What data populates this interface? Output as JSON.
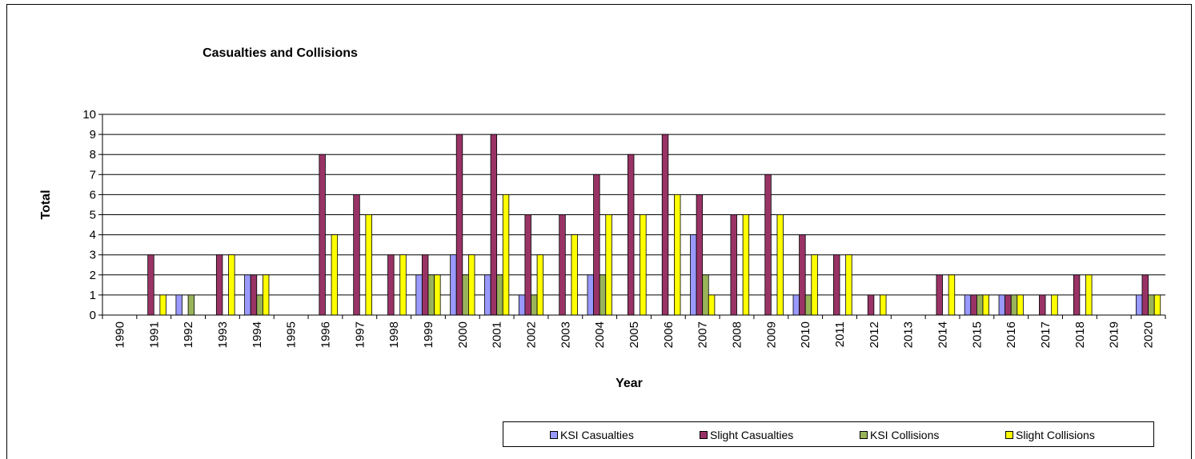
{
  "chart_data": {
    "type": "bar",
    "title": "Casualties and Collisions",
    "xlabel": "Year",
    "ylabel": "Total",
    "ylim": [
      0,
      10
    ],
    "yticks": [
      "0",
      "1",
      "2",
      "3",
      "4",
      "5",
      "6",
      "7",
      "8",
      "9",
      "10"
    ],
    "grid": true,
    "legend_position": "bottom-right",
    "categories": [
      "1990",
      "1991",
      "1992",
      "1993",
      "1994",
      "1995",
      "1996",
      "1997",
      "1998",
      "1999",
      "2000",
      "2001",
      "2002",
      "2003",
      "2004",
      "2005",
      "2006",
      "2007",
      "2008",
      "2009",
      "2010",
      "2011",
      "2012",
      "2013",
      "2014",
      "2015",
      "2016",
      "2017",
      "2018",
      "2019",
      "2020"
    ],
    "series": [
      {
        "name": "KSI Casualties",
        "color": "#9999FF",
        "values": [
          0,
          0,
          1,
          0,
          2,
          0,
          0,
          0,
          0,
          2,
          3,
          2,
          1,
          0,
          2,
          0,
          0,
          4,
          0,
          0,
          1,
          0,
          0,
          0,
          0,
          1,
          1,
          0,
          0,
          0,
          1
        ]
      },
      {
        "name": "Slight Casualties",
        "color": "#993366",
        "values": [
          0,
          3,
          0,
          3,
          2,
          0,
          8,
          6,
          3,
          3,
          9,
          9,
          5,
          5,
          7,
          8,
          9,
          6,
          5,
          7,
          4,
          3,
          1,
          0,
          2,
          1,
          1,
          1,
          2,
          0,
          2
        ]
      },
      {
        "name": "KSI Collisions",
        "color": "#99B35A",
        "values": [
          0,
          0,
          1,
          0,
          1,
          0,
          0,
          0,
          0,
          2,
          2,
          2,
          1,
          0,
          2,
          0,
          0,
          2,
          0,
          0,
          1,
          0,
          0,
          0,
          0,
          1,
          1,
          0,
          0,
          0,
          1
        ]
      },
      {
        "name": "Slight Collisions",
        "color": "#FFFF00",
        "values": [
          0,
          1,
          0,
          3,
          2,
          0,
          4,
          5,
          3,
          2,
          3,
          6,
          3,
          4,
          5,
          5,
          6,
          1,
          5,
          5,
          3,
          3,
          1,
          0,
          2,
          1,
          1,
          1,
          2,
          0,
          1
        ]
      }
    ]
  }
}
